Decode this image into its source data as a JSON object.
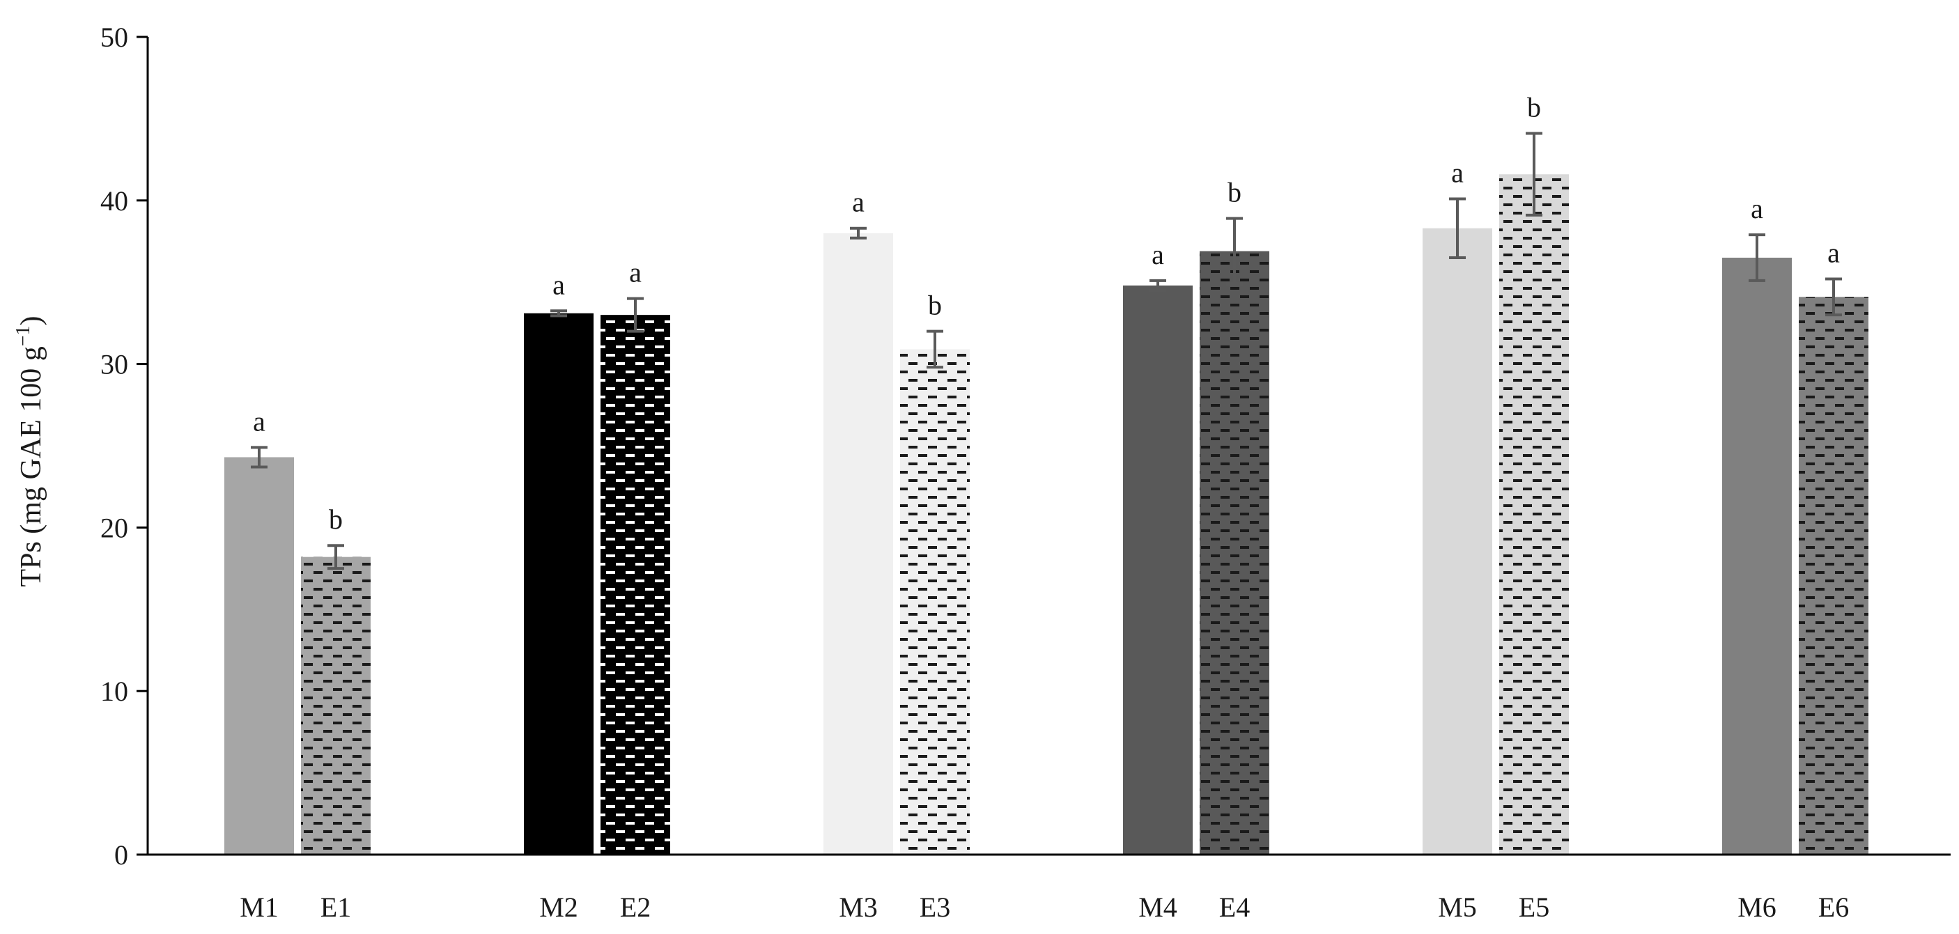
{
  "chart_data": {
    "type": "bar",
    "title": "",
    "ylabel": "TPs (mg GAE 100 g",
    "ylabel_sup": "−1",
    "ylabel_close": ")",
    "xlabel": "",
    "ylim": [
      0,
      50
    ],
    "yticks": [
      0,
      10,
      20,
      30,
      40,
      50
    ],
    "yticks_labels": [
      "0",
      "10",
      "20",
      "30",
      "40",
      "50"
    ],
    "grid": false,
    "legend": "none",
    "groups": [
      {
        "bars": [
          {
            "label": "M1",
            "value": 24.3,
            "error": 0.6,
            "sig": "a",
            "color": "#a6a6a6",
            "pattern": "solid"
          },
          {
            "label": "E1",
            "value": 18.2,
            "error": 0.7,
            "sig": "b",
            "color": "#a6a6a6",
            "pattern": "dashed"
          }
        ]
      },
      {
        "bars": [
          {
            "label": "M2",
            "value": 33.1,
            "error": 0.15,
            "sig": "a",
            "color": "#000000",
            "pattern": "solid"
          },
          {
            "label": "E2",
            "value": 33.0,
            "error": 1.0,
            "sig": "a",
            "color": "#000000",
            "pattern": "dashed"
          }
        ]
      },
      {
        "bars": [
          {
            "label": "M3",
            "value": 38.0,
            "error": 0.3,
            "sig": "a",
            "color": "#f0f0f0",
            "pattern": "solid"
          },
          {
            "label": "E3",
            "value": 30.9,
            "error": 1.1,
            "sig": "b",
            "color": "#f0f0f0",
            "pattern": "dashed"
          }
        ]
      },
      {
        "bars": [
          {
            "label": "M4",
            "value": 34.8,
            "error": 0.3,
            "sig": "a",
            "color": "#595959",
            "pattern": "solid"
          },
          {
            "label": "E4",
            "value": 36.9,
            "error": 2.0,
            "sig": "b",
            "color": "#595959",
            "pattern": "dashed"
          }
        ]
      },
      {
        "bars": [
          {
            "label": "M5",
            "value": 38.3,
            "error": 1.8,
            "sig": "a",
            "color": "#d9d9d9",
            "pattern": "solid"
          },
          {
            "label": "E5",
            "value": 41.6,
            "error": 2.5,
            "sig": "b",
            "color": "#d9d9d9",
            "pattern": "dashed"
          }
        ]
      },
      {
        "bars": [
          {
            "label": "M6",
            "value": 36.5,
            "error": 1.4,
            "sig": "a",
            "color": "#808080",
            "pattern": "solid"
          },
          {
            "label": "E6",
            "value": 34.1,
            "error": 1.1,
            "sig": "a",
            "color": "#808080",
            "pattern": "dashed"
          }
        ]
      }
    ]
  }
}
